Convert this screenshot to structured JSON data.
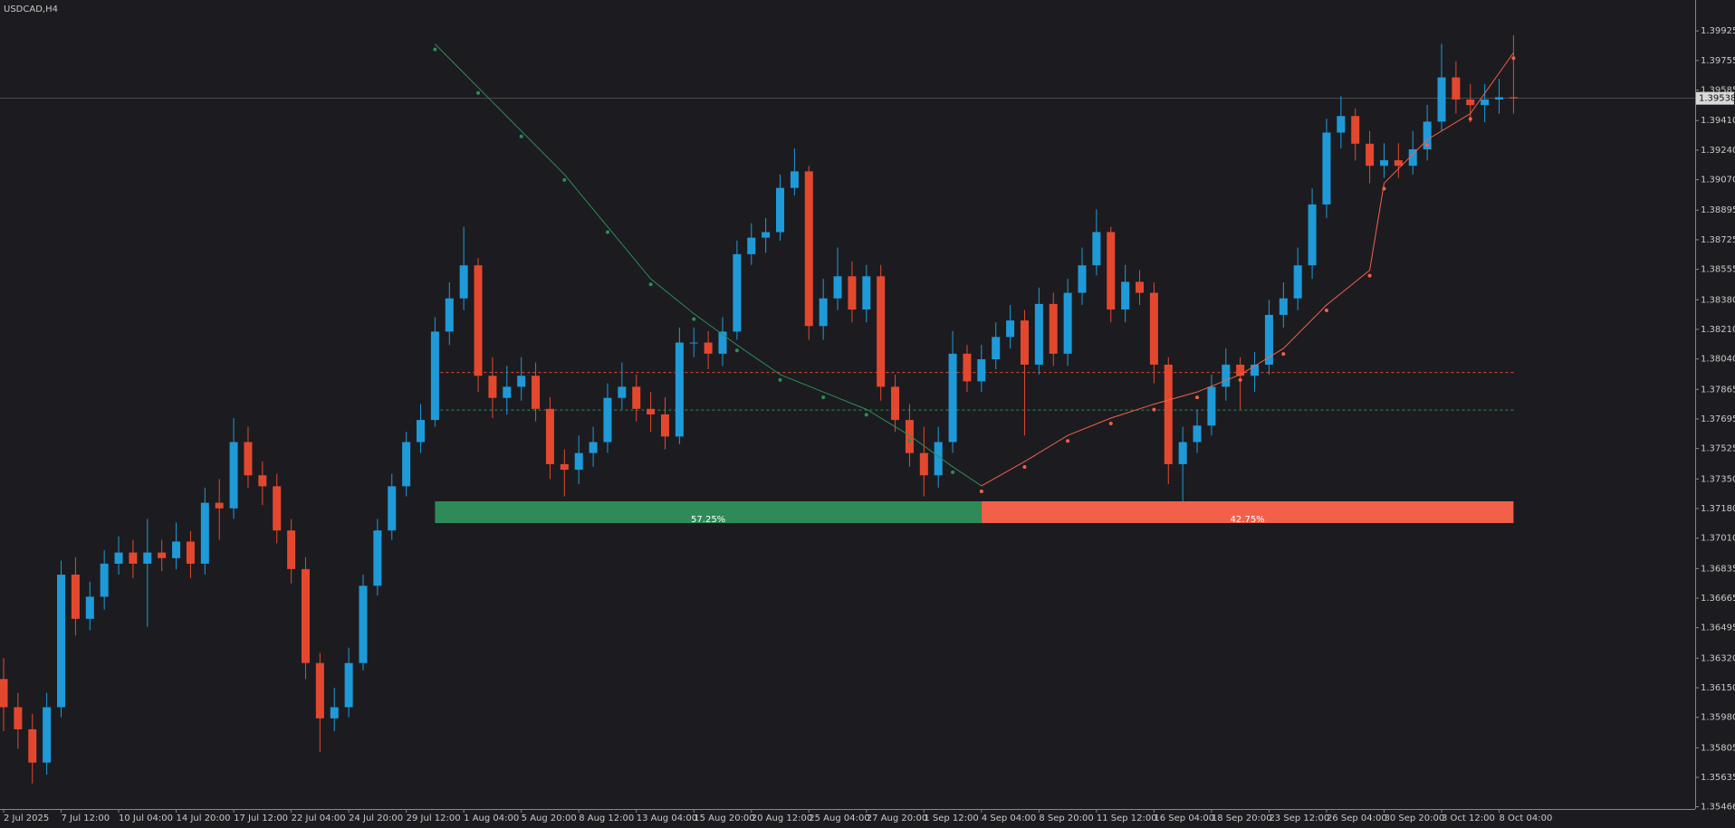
{
  "chart_data": {
    "type": "candlestick",
    "title": "USDCAD,H4",
    "categories": [
      "2 Jul 2025",
      null,
      null,
      null,
      "7 Jul 12:00",
      null,
      null,
      null,
      "10 Jul 04:00",
      null,
      null,
      null,
      "14 Jul 20:00",
      null,
      null,
      null,
      "17 Jul 12:00",
      null,
      null,
      null,
      "22 Jul 04:00",
      null,
      null,
      null,
      "24 Jul 20:00",
      null,
      null,
      null,
      "29 Jul 12:00",
      null,
      null,
      null,
      "1 Aug 04:00",
      null,
      null,
      null,
      "5 Aug 20:00",
      null,
      null,
      null,
      "8 Aug 12:00",
      null,
      null,
      null,
      "13 Aug 04:00",
      null,
      null,
      null,
      "15 Aug 20:00",
      null,
      null,
      null,
      "20 Aug 12:00",
      null,
      null,
      null,
      "25 Aug 04:00",
      null,
      null,
      null,
      "27 Aug 20:00",
      null,
      null,
      null,
      "1 Sep 12:00",
      null,
      null,
      null,
      "4 Sep 04:00",
      null,
      null,
      null,
      "8 Sep 20:00",
      null,
      null,
      null,
      "11 Sep 12:00",
      null,
      null,
      null,
      "16 Sep 04:00",
      null,
      null,
      null,
      "18 Sep 20:00",
      null,
      null,
      null,
      "23 Sep 12:00",
      null,
      null,
      null,
      "26 Sep 04:00",
      null,
      null,
      null,
      "30 Sep 20:00",
      null,
      null,
      null,
      "3 Oct 12:00",
      null,
      null,
      null,
      "8 Oct 04:00",
      null
    ],
    "open": [
      1.362,
      1.36038,
      1.35911,
      1.3572,
      1.36038,
      1.368,
      1.36546,
      1.36673,
      1.36863,
      1.36927,
      1.36863,
      1.36927,
      1.36895,
      1.3699,
      1.36863,
      1.37213,
      1.37181,
      1.37562,
      1.37371,
      1.37308,
      1.37054,
      1.36832,
      1.36292,
      1.35974,
      1.36038,
      1.36292,
      1.36736,
      1.37054,
      1.37308,
      1.37562,
      1.37689,
      1.38197,
      1.38388,
      1.38578,
      1.37943,
      1.37816,
      1.3788,
      1.37943,
      1.37753,
      1.37435,
      1.37403,
      1.37499,
      1.37562,
      1.37816,
      1.3788,
      1.37753,
      1.37721,
      1.37594,
      1.38134,
      1.38134,
      1.3807,
      1.38197,
      1.38642,
      1.38737,
      1.38769,
      1.39023,
      1.39118,
      1.38229,
      1.38388,
      1.38515,
      1.38324,
      1.38515,
      1.3788,
      1.37689,
      1.37499,
      1.37371,
      1.37562,
      1.3807,
      1.37911,
      1.38038,
      1.38166,
      1.38261,
      1.38007,
      1.38356,
      1.3807,
      1.3842,
      1.38578,
      1.38769,
      1.38324,
      1.38483,
      1.3842,
      1.38007,
      1.37435,
      1.37562,
      1.37657,
      1.3788,
      1.38007,
      1.37943,
      1.38007,
      1.38293,
      1.38388,
      1.38578,
      1.38928,
      1.39341,
      1.39436,
      1.39277,
      1.3915,
      1.39182,
      1.3915,
      1.39245,
      1.39404,
      1.39658,
      1.39531,
      1.39499,
      1.39531,
      1.39544
    ],
    "high": [
      1.3632,
      1.3612,
      1.36,
      1.3612,
      1.3688,
      1.369,
      1.3676,
      1.3694,
      1.3702,
      1.37,
      1.3712,
      1.37,
      1.371,
      1.3705,
      1.373,
      1.3735,
      1.377,
      1.3765,
      1.3745,
      1.3738,
      1.3712,
      1.369,
      1.3635,
      1.3615,
      1.3638,
      1.368,
      1.3712,
      1.3738,
      1.3762,
      1.3778,
      1.3828,
      1.3848,
      1.388,
      1.3862,
      1.3805,
      1.38,
      1.3805,
      1.3802,
      1.3782,
      1.3752,
      1.376,
      1.3765,
      1.379,
      1.3802,
      1.3795,
      1.3785,
      1.3782,
      1.3822,
      1.3822,
      1.382,
      1.3828,
      1.3872,
      1.3882,
      1.3885,
      1.391,
      1.3925,
      1.3915,
      1.385,
      1.3868,
      1.386,
      1.3858,
      1.3858,
      1.3795,
      1.3778,
      1.3765,
      1.3765,
      1.382,
      1.3812,
      1.3812,
      1.3825,
      1.3835,
      1.3832,
      1.3845,
      1.3842,
      1.385,
      1.3868,
      1.389,
      1.388,
      1.3858,
      1.3855,
      1.3848,
      1.3805,
      1.3765,
      1.3775,
      1.3795,
      1.381,
      1.3805,
      1.3808,
      1.3838,
      1.3848,
      1.3868,
      1.3902,
      1.3942,
      1.3955,
      1.3948,
      1.3935,
      1.3928,
      1.3928,
      1.3935,
      1.395,
      1.3985,
      1.3975,
      1.3962,
      1.3962,
      1.3965,
      1.399
    ],
    "low": [
      1.359,
      1.358,
      1.356,
      1.3565,
      1.3598,
      1.3645,
      1.3648,
      1.366,
      1.368,
      1.3678,
      1.365,
      1.3682,
      1.3683,
      1.3678,
      1.368,
      1.37,
      1.3712,
      1.373,
      1.372,
      1.3698,
      1.3675,
      1.362,
      1.3578,
      1.359,
      1.3598,
      1.3625,
      1.3668,
      1.37,
      1.3725,
      1.375,
      1.3765,
      1.3812,
      1.3832,
      1.3785,
      1.377,
      1.3772,
      1.378,
      1.3768,
      1.3735,
      1.3725,
      1.3732,
      1.3742,
      1.375,
      1.3775,
      1.3768,
      1.3762,
      1.3752,
      1.3755,
      1.3805,
      1.3798,
      1.38,
      1.3815,
      1.3858,
      1.3865,
      1.3872,
      1.3898,
      1.3815,
      1.3815,
      1.3832,
      1.3825,
      1.3825,
      1.378,
      1.3762,
      1.3742,
      1.3725,
      1.373,
      1.375,
      1.3785,
      1.3785,
      1.3798,
      1.381,
      1.376,
      1.3795,
      1.38,
      1.38,
      1.3835,
      1.3852,
      1.3825,
      1.3825,
      1.3835,
      1.379,
      1.3732,
      1.3722,
      1.375,
      1.376,
      1.378,
      1.3775,
      1.3785,
      1.3795,
      1.3822,
      1.3832,
      1.385,
      1.3885,
      1.3925,
      1.3918,
      1.3905,
      1.3908,
      1.3908,
      1.391,
      1.3918,
      1.3935,
      1.3945,
      1.394,
      1.394,
      1.3945,
      1.3945
    ],
    "close": [
      1.36038,
      1.35911,
      1.3572,
      1.36038,
      1.368,
      1.36546,
      1.36673,
      1.36863,
      1.36927,
      1.36863,
      1.36927,
      1.36895,
      1.3699,
      1.36863,
      1.37213,
      1.37181,
      1.37562,
      1.37371,
      1.37308,
      1.37054,
      1.36832,
      1.36292,
      1.35974,
      1.36038,
      1.36292,
      1.36736,
      1.37054,
      1.37308,
      1.37562,
      1.37689,
      1.38197,
      1.38388,
      1.38578,
      1.37943,
      1.37816,
      1.3788,
      1.37943,
      1.37753,
      1.37435,
      1.37403,
      1.37499,
      1.37562,
      1.37816,
      1.3788,
      1.37753,
      1.37721,
      1.37594,
      1.38134,
      1.38134,
      1.3807,
      1.38197,
      1.38642,
      1.38737,
      1.38769,
      1.39023,
      1.39118,
      1.38229,
      1.38388,
      1.38515,
      1.38324,
      1.38515,
      1.3788,
      1.37689,
      1.37499,
      1.37371,
      1.37562,
      1.3807,
      1.37911,
      1.38038,
      1.38166,
      1.38261,
      1.38007,
      1.38356,
      1.3807,
      1.3842,
      1.38578,
      1.38769,
      1.38324,
      1.38483,
      1.3842,
      1.38007,
      1.37435,
      1.37562,
      1.37657,
      1.3788,
      1.38007,
      1.37943,
      1.38007,
      1.38293,
      1.38388,
      1.38578,
      1.38928,
      1.39341,
      1.39436,
      1.39277,
      1.3915,
      1.39182,
      1.3915,
      1.39245,
      1.39404,
      1.39658,
      1.39531,
      1.39499,
      1.39531,
      1.39544,
      1.39538
    ],
    "up_color": "#1f9ad8",
    "down_color": "#e3482f",
    "ylim": [
      1.35453,
      1.40103
    ],
    "yticks": [
      1.39925,
      1.39755,
      1.39585,
      {
        "value": 1.3941,
        "label": "1.39410"
      },
      {
        "value": 1.3924,
        "label": "1.39240"
      },
      {
        "value": 1.3907,
        "label": "1.39070"
      },
      1.38895,
      1.38725,
      1.38555,
      {
        "value": 1.3838,
        "label": "1.38380"
      },
      {
        "value": 1.3821,
        "label": "1.38210"
      },
      {
        "value": 1.3804,
        "label": "1.38040"
      },
      1.37865,
      1.37695,
      1.37525,
      {
        "value": 1.3735,
        "label": "1.37350"
      },
      {
        "value": 1.3718,
        "label": "1.37180"
      },
      {
        "value": 1.3701,
        "label": "1.37010"
      },
      1.36835,
      1.36665,
      1.36495,
      {
        "value": 1.3632,
        "label": "1.36320"
      },
      {
        "value": 1.3615,
        "label": "1.36150"
      },
      {
        "value": 1.3598,
        "label": "1.35980"
      },
      1.35805,
      1.35635,
      1.35466
    ],
    "last_price": 1.39538,
    "overlays": [
      {
        "color": "#2e8b57",
        "label": "57.25%",
        "x": [
          30,
          33,
          36,
          39,
          42,
          45,
          48,
          51,
          54,
          57,
          60,
          63,
          66,
          68
        ],
        "values": [
          1.3985,
          1.396,
          1.3935,
          1.391,
          1.388,
          1.385,
          1.383,
          1.3812,
          1.3795,
          1.3785,
          1.3775,
          1.376,
          1.3742,
          1.3731
        ]
      },
      {
        "color": "#f2604a",
        "label": "42.75%",
        "x": [
          68,
          71,
          74,
          77,
          80,
          83,
          86,
          89,
          92,
          95,
          96,
          99,
          102,
          105
        ],
        "values": [
          1.3731,
          1.3745,
          1.376,
          1.377,
          1.3778,
          1.3785,
          1.3795,
          1.381,
          1.3835,
          1.3855,
          1.3905,
          1.393,
          1.3945,
          1.398
        ]
      }
    ],
    "levels": [
      {
        "value": 1.37962,
        "color": "#e3482f"
      },
      {
        "value": 1.37746,
        "color": "#2e8b57"
      }
    ]
  }
}
